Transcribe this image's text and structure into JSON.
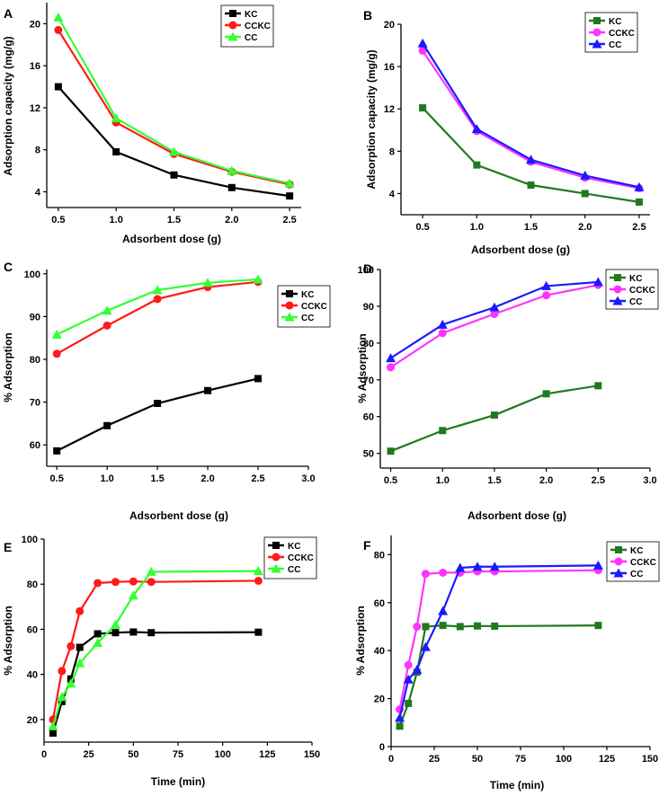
{
  "colors": {
    "KC_black": "#000000",
    "CCKC_red": "#ff1a1a",
    "CC_lime": "#33ff33",
    "KC_green": "#1f7a1f",
    "CCKC_magenta": "#ff33ff",
    "CC_blue": "#1a1aff",
    "axis": "#000000"
  },
  "chart_data": [
    {
      "panel": "A",
      "type": "line",
      "xlabel": "Adsorbent dose (g)",
      "ylabel": "Adsorption capacity (mg/g)",
      "xlim": [
        0.4,
        2.6
      ],
      "ylim": [
        2.5,
        22
      ],
      "xticks": [
        0.5,
        1.0,
        1.5,
        2.0,
        2.5
      ],
      "xtick_labels": [
        "0.5",
        "1.0",
        "1.5",
        "2.0",
        "2.5"
      ],
      "yticks": [
        4,
        8,
        12,
        16,
        20
      ],
      "ytick_labels": [
        "4",
        "8",
        "12",
        "16",
        "20"
      ],
      "legend_position": "top-right",
      "series": [
        {
          "name": "KC",
          "color": "#000000",
          "marker": "square",
          "x": [
            0.5,
            1.0,
            1.5,
            2.0,
            2.5
          ],
          "y": [
            14.0,
            7.8,
            5.6,
            4.4,
            3.6
          ]
        },
        {
          "name": "CCKC",
          "color": "#ff1a1a",
          "marker": "circle",
          "x": [
            0.5,
            1.0,
            1.5,
            2.0,
            2.5
          ],
          "y": [
            19.4,
            10.6,
            7.6,
            5.9,
            4.7
          ]
        },
        {
          "name": "CC",
          "color": "#33ff33",
          "marker": "triangle",
          "x": [
            0.5,
            1.0,
            1.5,
            2.0,
            2.5
          ],
          "y": [
            20.6,
            11.0,
            7.8,
            6.0,
            4.8
          ]
        }
      ]
    },
    {
      "panel": "B",
      "type": "line",
      "xlabel": "Adsorbent dose (g)",
      "ylabel": "Adsorption capacity (mg/g)",
      "xlim": [
        0.3,
        2.6
      ],
      "ylim": [
        2,
        20
      ],
      "xticks": [
        0.5,
        1.0,
        1.5,
        2.0,
        2.5
      ],
      "xtick_labels": [
        "0.5",
        "1.0",
        "1.5",
        "2.0",
        "2.5"
      ],
      "yticks": [
        4,
        8,
        12,
        16,
        20
      ],
      "ytick_labels": [
        "4",
        "8",
        "12",
        "16",
        "20"
      ],
      "legend_position": "top-right",
      "series": [
        {
          "name": "KC",
          "color": "#1f7a1f",
          "marker": "square",
          "x": [
            0.5,
            1.0,
            1.5,
            2.0,
            2.5
          ],
          "y": [
            12.1,
            6.7,
            4.8,
            4.0,
            3.2
          ]
        },
        {
          "name": "CCKC",
          "color": "#ff33ff",
          "marker": "circle",
          "x": [
            0.5,
            1.0,
            1.5,
            2.0,
            2.5
          ],
          "y": [
            17.5,
            9.9,
            7.0,
            5.5,
            4.5
          ]
        },
        {
          "name": "CC",
          "color": "#1a1aff",
          "marker": "triangle",
          "x": [
            0.5,
            1.0,
            1.5,
            2.0,
            2.5
          ],
          "y": [
            18.2,
            10.1,
            7.2,
            5.7,
            4.6
          ]
        }
      ]
    },
    {
      "panel": "C",
      "type": "line",
      "xlabel": "Adsorbent dose (g)",
      "ylabel": "% Adsorption",
      "xlim": [
        0.4,
        3.0
      ],
      "ylim": [
        55,
        101
      ],
      "xticks": [
        0.5,
        1.0,
        1.5,
        2.0,
        2.5,
        3.0
      ],
      "xtick_labels": [
        "0.5",
        "1.0",
        "1.5",
        "2.0",
        "2.5",
        "3.0"
      ],
      "yticks": [
        60,
        70,
        80,
        90,
        100
      ],
      "ytick_labels": [
        "60",
        "70",
        "80",
        "90",
        "100"
      ],
      "legend_position": "middle-right",
      "series": [
        {
          "name": "KC",
          "color": "#000000",
          "marker": "square",
          "x": [
            0.5,
            1.0,
            1.5,
            2.0,
            2.5
          ],
          "y": [
            58.6,
            64.5,
            69.7,
            72.7,
            75.5
          ]
        },
        {
          "name": "CCKC",
          "color": "#ff1a1a",
          "marker": "circle",
          "x": [
            0.5,
            1.0,
            1.5,
            2.0,
            2.5
          ],
          "y": [
            81.3,
            87.9,
            94.1,
            96.9,
            98.1
          ]
        },
        {
          "name": "CC",
          "color": "#33ff33",
          "marker": "triangle",
          "x": [
            0.5,
            1.0,
            1.5,
            2.0,
            2.5
          ],
          "y": [
            85.8,
            91.4,
            96.2,
            97.9,
            98.7
          ]
        }
      ]
    },
    {
      "panel": "D",
      "type": "line",
      "xlabel": "Adsorbent dose (g)",
      "ylabel": "% Adsorption",
      "xlim": [
        0.4,
        3.0
      ],
      "ylim": [
        46,
        100
      ],
      "xticks": [
        0.5,
        1.0,
        1.5,
        2.0,
        2.5,
        3.0
      ],
      "xtick_labels": [
        "0.5",
        "1.0",
        "1.5",
        "2.0",
        "2.5",
        "3.0"
      ],
      "yticks": [
        50,
        60,
        70,
        80,
        90,
        100
      ],
      "ytick_labels": [
        "50",
        "60",
        "70",
        "80",
        "90",
        "100"
      ],
      "legend_position": "top-right",
      "series": [
        {
          "name": "KC",
          "color": "#1f7a1f",
          "marker": "square",
          "x": [
            0.5,
            1.0,
            1.5,
            2.0,
            2.5
          ],
          "y": [
            50.6,
            56.2,
            60.4,
            66.2,
            68.4
          ]
        },
        {
          "name": "CCKC",
          "color": "#ff33ff",
          "marker": "circle",
          "x": [
            0.5,
            1.0,
            1.5,
            2.0,
            2.5
          ],
          "y": [
            73.4,
            82.7,
            87.9,
            93.0,
            95.8
          ]
        },
        {
          "name": "CC",
          "color": "#1a1aff",
          "marker": "triangle",
          "x": [
            0.5,
            1.0,
            1.5,
            2.0,
            2.5
          ],
          "y": [
            75.9,
            85.0,
            89.7,
            95.5,
            96.6
          ]
        }
      ]
    },
    {
      "panel": "E",
      "type": "line",
      "xlabel": "Time (min)",
      "ylabel": "% Adsorption",
      "xlim": [
        0,
        150
      ],
      "ylim": [
        10,
        100
      ],
      "xticks": [
        0,
        25,
        50,
        75,
        100,
        125,
        150
      ],
      "xtick_labels": [
        "0",
        "25",
        "50",
        "75",
        "100",
        "125",
        "150"
      ],
      "yticks": [
        20,
        40,
        60,
        80,
        100
      ],
      "ytick_labels": [
        "20",
        "40",
        "60",
        "80",
        "100"
      ],
      "legend_position": "top-right",
      "series": [
        {
          "name": "KC",
          "color": "#000000",
          "marker": "square",
          "x": [
            5,
            10,
            15,
            20,
            30,
            40,
            50,
            60,
            120
          ],
          "y": [
            14,
            28,
            38,
            52,
            58,
            58.5,
            58.8,
            58.5,
            58.7
          ]
        },
        {
          "name": "CCKC",
          "color": "#ff1a1a",
          "marker": "circle",
          "x": [
            5,
            10,
            15,
            20,
            30,
            40,
            50,
            60,
            120
          ],
          "y": [
            20,
            41.5,
            52.5,
            68,
            80.5,
            81,
            81.2,
            81,
            81.5
          ]
        },
        {
          "name": "CC",
          "color": "#33ff33",
          "marker": "triangle",
          "x": [
            5,
            10,
            15,
            20,
            30,
            40,
            50,
            60,
            120
          ],
          "y": [
            17,
            30,
            36,
            45,
            54,
            62,
            75,
            85.5,
            85.8
          ]
        }
      ]
    },
    {
      "panel": "F",
      "type": "line",
      "xlabel": "Time (min)",
      "ylabel": "% Adsorption",
      "xlim": [
        0,
        150
      ],
      "ylim": [
        0,
        88
      ],
      "xticks": [
        0,
        25,
        50,
        75,
        100,
        125,
        150
      ],
      "xtick_labels": [
        "0",
        "25",
        "50",
        "75",
        "100",
        "125",
        "150"
      ],
      "yticks": [
        0,
        20,
        40,
        60,
        80
      ],
      "ytick_labels": [
        "0",
        "20",
        "40",
        "60",
        "80"
      ],
      "legend_position": "top-right",
      "series": [
        {
          "name": "KC",
          "color": "#1f7a1f",
          "marker": "square",
          "x": [
            5,
            10,
            15,
            20,
            30,
            40,
            50,
            60,
            120
          ],
          "y": [
            8.5,
            18,
            31,
            50,
            50.5,
            50,
            50.3,
            50.2,
            50.5
          ]
        },
        {
          "name": "CCKC",
          "color": "#ff33ff",
          "marker": "circle",
          "x": [
            5,
            10,
            15,
            20,
            30,
            40,
            50,
            60,
            120
          ],
          "y": [
            15.5,
            34,
            50,
            72,
            72.5,
            72.5,
            73,
            73,
            73.5
          ]
        },
        {
          "name": "CC",
          "color": "#1a1aff",
          "marker": "triangle",
          "x": [
            5,
            10,
            15,
            20,
            30,
            40,
            50,
            60,
            120
          ],
          "y": [
            12,
            28,
            32,
            41.5,
            56.5,
            74.5,
            75,
            75,
            75.5
          ]
        }
      ]
    }
  ]
}
